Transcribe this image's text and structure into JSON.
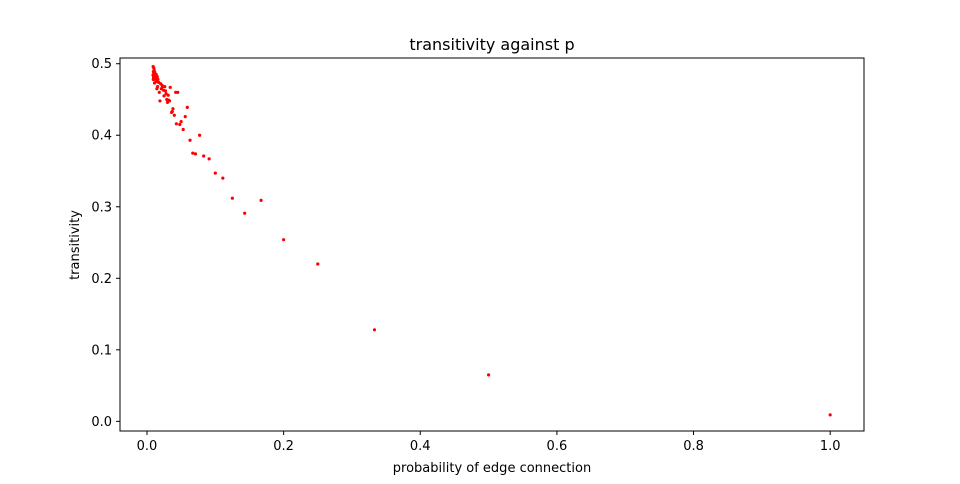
{
  "chart_data": {
    "type": "scatter",
    "title": "transitivity against p",
    "xlabel": "probability of edge connection",
    "ylabel": "transitivity",
    "xlim": [
      -0.0395,
      1.0495
    ],
    "ylim": [
      -0.0135,
      0.508
    ],
    "xticks": [
      0.0,
      0.2,
      0.4,
      0.6,
      0.8,
      1.0
    ],
    "xtick_labels": [
      "0.0",
      "0.2",
      "0.4",
      "0.6",
      "0.8",
      "1.0"
    ],
    "yticks": [
      0.0,
      0.1,
      0.2,
      0.3,
      0.4,
      0.5
    ],
    "ytick_labels": [
      "0.0",
      "0.1",
      "0.2",
      "0.3",
      "0.4",
      "0.5"
    ],
    "grid": false,
    "marker_color": "#ff0000",
    "series": [
      {
        "points": [
          [
            1.0,
            0.009
          ],
          [
            0.5,
            0.065
          ],
          [
            0.333,
            0.128
          ],
          [
            0.25,
            0.22
          ],
          [
            0.2,
            0.254
          ],
          [
            0.167,
            0.309
          ],
          [
            0.143,
            0.291
          ],
          [
            0.125,
            0.312
          ],
          [
            0.111,
            0.34
          ],
          [
            0.1,
            0.347
          ],
          [
            0.091,
            0.367
          ],
          [
            0.083,
            0.371
          ],
          [
            0.077,
            0.4
          ],
          [
            0.071,
            0.374
          ],
          [
            0.067,
            0.375
          ],
          [
            0.063,
            0.393
          ],
          [
            0.059,
            0.439
          ],
          [
            0.056,
            0.426
          ],
          [
            0.053,
            0.408
          ],
          [
            0.05,
            0.419
          ],
          [
            0.048,
            0.415
          ],
          [
            0.045,
            0.46
          ],
          [
            0.043,
            0.416
          ],
          [
            0.042,
            0.46
          ],
          [
            0.04,
            0.428
          ],
          [
            0.038,
            0.437
          ],
          [
            0.037,
            0.433
          ],
          [
            0.036,
            0.432
          ],
          [
            0.034,
            0.467
          ],
          [
            0.033,
            0.448
          ],
          [
            0.032,
            0.449
          ],
          [
            0.031,
            0.456
          ],
          [
            0.03,
            0.446
          ],
          [
            0.029,
            0.45
          ],
          [
            0.028,
            0.458
          ],
          [
            0.027,
            0.462
          ],
          [
            0.026,
            0.468
          ],
          [
            0.025,
            0.455
          ],
          [
            0.024,
            0.463
          ],
          [
            0.023,
            0.468
          ],
          [
            0.022,
            0.47
          ],
          [
            0.021,
            0.465
          ],
          [
            0.02,
            0.472
          ],
          [
            0.019,
            0.448
          ],
          [
            0.018,
            0.46
          ],
          [
            0.017,
            0.474
          ],
          [
            0.016,
            0.478
          ],
          [
            0.0155,
            0.468
          ],
          [
            0.015,
            0.482
          ],
          [
            0.0145,
            0.465
          ],
          [
            0.014,
            0.477
          ],
          [
            0.0135,
            0.485
          ],
          [
            0.013,
            0.475
          ],
          [
            0.0125,
            0.479
          ],
          [
            0.012,
            0.483
          ],
          [
            0.0115,
            0.488
          ],
          [
            0.011,
            0.473
          ],
          [
            0.0105,
            0.491
          ],
          [
            0.01,
            0.494
          ],
          [
            0.0098,
            0.486
          ],
          [
            0.0096,
            0.481
          ],
          [
            0.0094,
            0.489
          ],
          [
            0.0092,
            0.478
          ],
          [
            0.009,
            0.496
          ],
          [
            0.0088,
            0.484
          ]
        ]
      }
    ]
  }
}
